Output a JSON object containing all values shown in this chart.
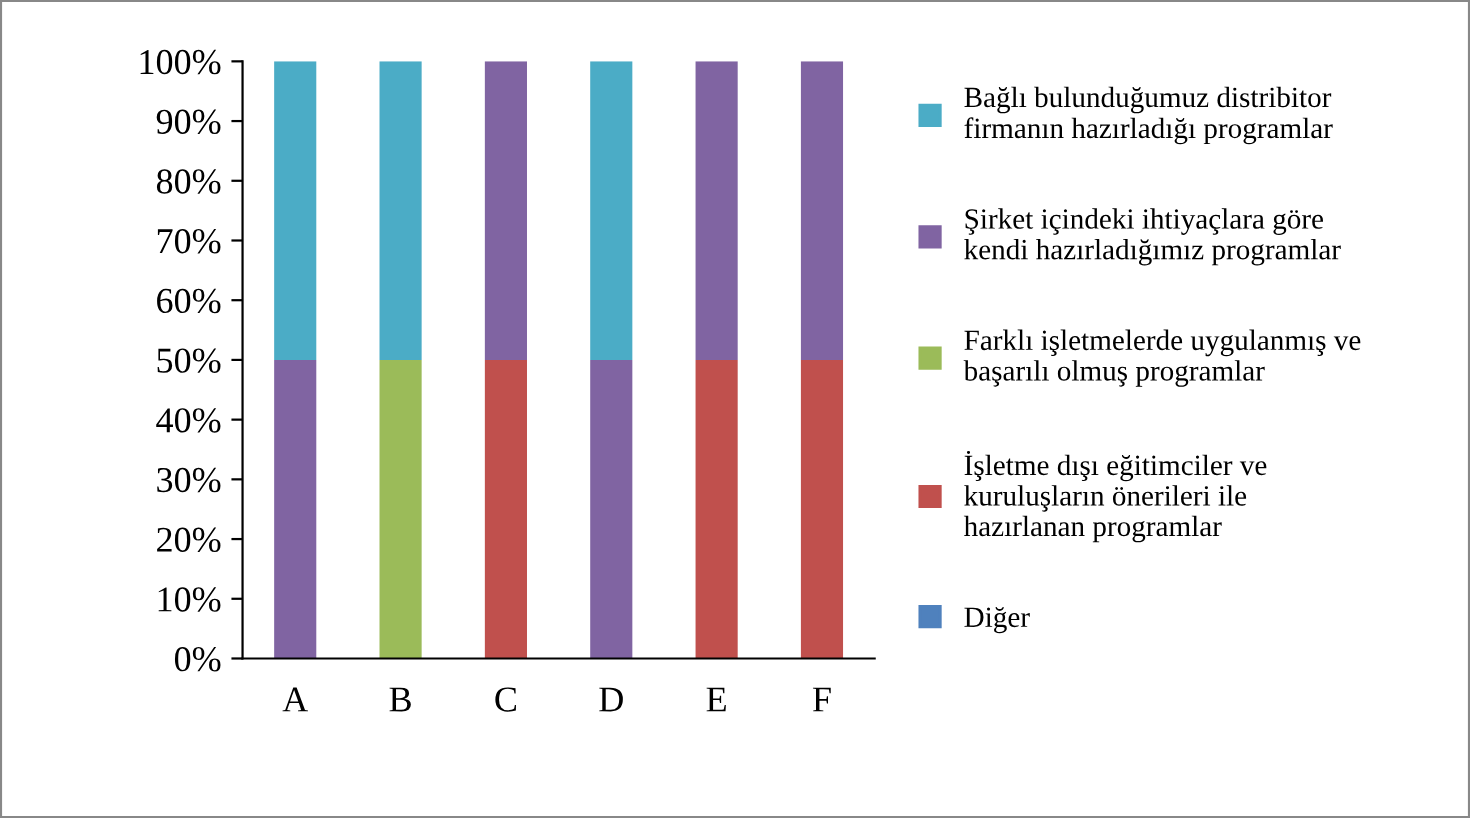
{
  "chart_data": {
    "type": "bar",
    "stacked": true,
    "categories": [
      "A",
      "B",
      "C",
      "D",
      "E",
      "F"
    ],
    "series": [
      {
        "name": "Diğer",
        "color": "#4f81bd",
        "values": [
          0,
          0,
          0,
          0,
          0,
          0
        ]
      },
      {
        "name": "İşletme dışı eğitimciler ve kuruluşların önerileri ile hazırlanan programlar",
        "color": "#c0504d",
        "values": [
          0,
          0,
          50,
          0,
          50,
          50
        ]
      },
      {
        "name": "Farklı işletmelerde uygulanmış ve başarılı olmuş programlar",
        "color": "#9bbb59",
        "values": [
          0,
          50,
          0,
          0,
          0,
          0
        ]
      },
      {
        "name": "Şirket içindeki ihtiyaçlara göre kendi hazırladığımız programlar",
        "color": "#8064a2",
        "values": [
          50,
          0,
          50,
          50,
          50,
          50
        ]
      },
      {
        "name": "Bağlı bulunduğumuz distribitor firmanın hazırladığı programlar",
        "color": "#4bacc6",
        "values": [
          50,
          50,
          0,
          50,
          0,
          0
        ]
      }
    ],
    "ylim": [
      0,
      100
    ],
    "yticks": [
      {
        "value": 0,
        "label": "0%"
      },
      {
        "value": 10,
        "label": "10%"
      },
      {
        "value": 20,
        "label": "20%"
      },
      {
        "value": 30,
        "label": "30%"
      },
      {
        "value": 40,
        "label": "40%"
      },
      {
        "value": 50,
        "label": "50%"
      },
      {
        "value": 60,
        "label": "60%"
      },
      {
        "value": 70,
        "label": "70%"
      },
      {
        "value": 80,
        "label": "80%"
      },
      {
        "value": 90,
        "label": "90%"
      },
      {
        "value": 100,
        "label": "100%"
      }
    ],
    "grid": false,
    "legend": "right"
  }
}
